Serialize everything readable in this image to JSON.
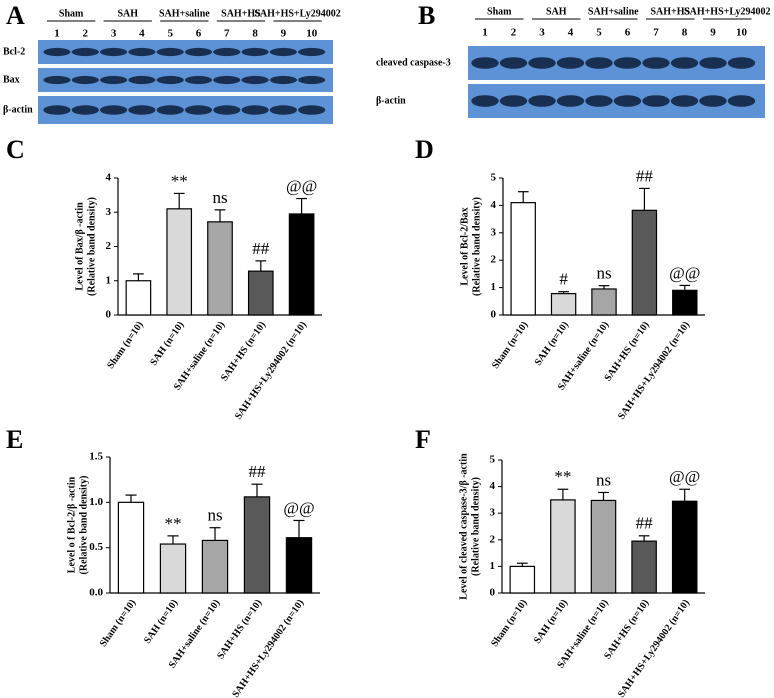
{
  "blots": [
    {
      "label": "A",
      "groups": [
        "Sham",
        "SAH",
        "SAH+saline",
        "SAH+HS",
        "SAH+HS+Ly294002"
      ],
      "lanes": [
        1,
        2,
        3,
        4,
        5,
        6,
        7,
        8,
        9,
        10
      ],
      "rows": [
        "Bcl-2",
        "Bax",
        "β-actin"
      ]
    },
    {
      "label": "B",
      "groups": [
        "Sham",
        "SAH",
        "SAH+saline",
        "SAH+HS",
        "SAH+HS+Ly294002"
      ],
      "lanes": [
        1,
        2,
        3,
        4,
        5,
        6,
        7,
        8,
        9,
        10
      ],
      "rows": [
        "cleaved caspase-3",
        "β-actin"
      ]
    }
  ],
  "chart_data": [
    {
      "type": "bar",
      "panel": "C",
      "ylabel": [
        "Level of Bax/β -actin",
        "(Relative band density)"
      ],
      "categories": [
        "Sham  (n=10)",
        "SAH  (n=10)",
        "SAH+saline  (n=10)",
        "SAH+HS  (n=10)",
        "SAH+HS+Ly294002  (n=10)"
      ],
      "values": [
        1.0,
        3.1,
        2.72,
        1.28,
        2.95
      ],
      "errors": [
        0.2,
        0.45,
        0.35,
        0.3,
        0.45
      ],
      "colors": [
        "#ffffff",
        "#d9d9d9",
        "#a6a6a6",
        "#595959",
        "#000000"
      ],
      "annotations": [
        null,
        "**",
        "ns",
        "##",
        "@@"
      ],
      "ylim": [
        0,
        4
      ],
      "yticks": [
        0,
        1,
        2,
        3,
        4
      ]
    },
    {
      "type": "bar",
      "panel": "D",
      "ylabel": [
        "Level of Bcl-2/Bax",
        "(Relative band density)"
      ],
      "categories": [
        "Sham  (n=10)",
        "SAH  (n=10)",
        "SAH+saline  (n=10)",
        "SAH+HS  (n=10)",
        "SAH+HS+Ly294002  (n=10)"
      ],
      "values": [
        4.1,
        0.78,
        0.95,
        3.82,
        0.9
      ],
      "errors": [
        0.4,
        0.07,
        0.12,
        0.8,
        0.18
      ],
      "colors": [
        "#ffffff",
        "#d9d9d9",
        "#a6a6a6",
        "#595959",
        "#000000"
      ],
      "annotations": [
        null,
        "#",
        "ns",
        "##",
        "@@"
      ],
      "ylim": [
        0,
        5
      ],
      "yticks": [
        0,
        1,
        2,
        3,
        4,
        5
      ]
    },
    {
      "type": "bar",
      "panel": "E",
      "ylabel": [
        "Level o f Bcl-2/β -actin",
        "(Relative band density)"
      ],
      "categories": [
        "Sham  (n=10)",
        "SAH  (n=10)",
        "SAH+saline  (n=10)",
        "SAH+HS  (n=10)",
        "SAH+HS+Ly294002  (n=10)"
      ],
      "values": [
        1.0,
        0.54,
        0.58,
        1.06,
        0.61
      ],
      "errors": [
        0.08,
        0.09,
        0.14,
        0.14,
        0.19
      ],
      "colors": [
        "#ffffff",
        "#d9d9d9",
        "#a6a6a6",
        "#595959",
        "#000000"
      ],
      "annotations": [
        null,
        "**",
        "ns",
        "##",
        "@@"
      ],
      "ylim": [
        0,
        1.5
      ],
      "yticks": [
        {
          "value": 0,
          "label": "0.0"
        },
        0.5,
        {
          "value": 1,
          "label": "1.0"
        },
        1.5
      ]
    },
    {
      "type": "bar",
      "panel": "F",
      "ylabel": [
        "Level of cleaved caspase-3/β -actin",
        "(Relative band density)"
      ],
      "categories": [
        "Sham  (n=10)",
        "SAH  (n=10)",
        "SAH+saline  (n=10)",
        "SAH+HS  (n=10)",
        "SAH+HS+Ly294002  (n=10)"
      ],
      "values": [
        1.0,
        3.5,
        3.48,
        1.95,
        3.45
      ],
      "errors": [
        0.12,
        0.4,
        0.3,
        0.2,
        0.45
      ],
      "colors": [
        "#ffffff",
        "#d9d9d9",
        "#a6a6a6",
        "#595959",
        "#000000"
      ],
      "annotations": [
        null,
        "**",
        "ns",
        "##",
        "@@"
      ],
      "ylim": [
        0,
        5
      ],
      "yticks": [
        0,
        1,
        2,
        3,
        4,
        5
      ]
    }
  ]
}
